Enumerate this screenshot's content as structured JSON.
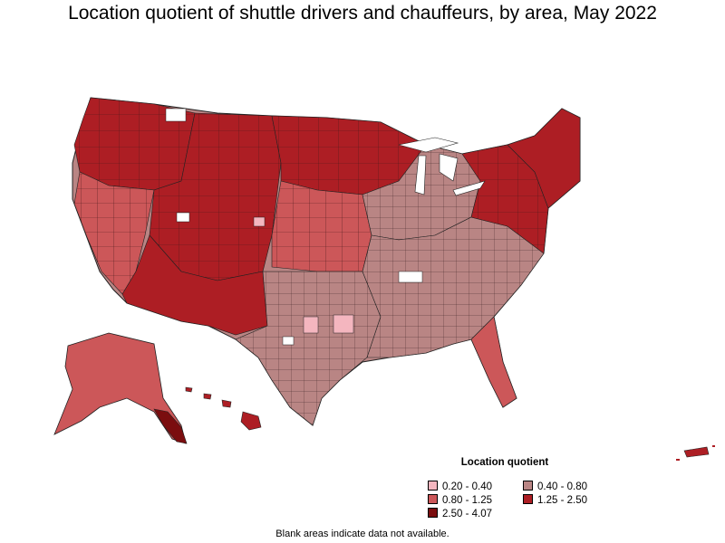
{
  "title": "Location quotient of shuttle drivers and chauffeurs, by area, May 2022",
  "legend": {
    "title": "Location quotient",
    "items": [
      {
        "label": "0.20 - 0.40",
        "color": "#f4b6bf"
      },
      {
        "label": "0.40 - 0.80",
        "color": "#b98584"
      },
      {
        "label": "0.80 - 1.25",
        "color": "#cc5759"
      },
      {
        "label": "1.25 - 2.50",
        "color": "#ad1e24"
      },
      {
        "label": "2.50 - 4.07",
        "color": "#7b0d0f"
      }
    ]
  },
  "footnote": "Blank areas indicate data not available.",
  "colors": {
    "border": "#222222",
    "no_data": "#ffffff"
  }
}
